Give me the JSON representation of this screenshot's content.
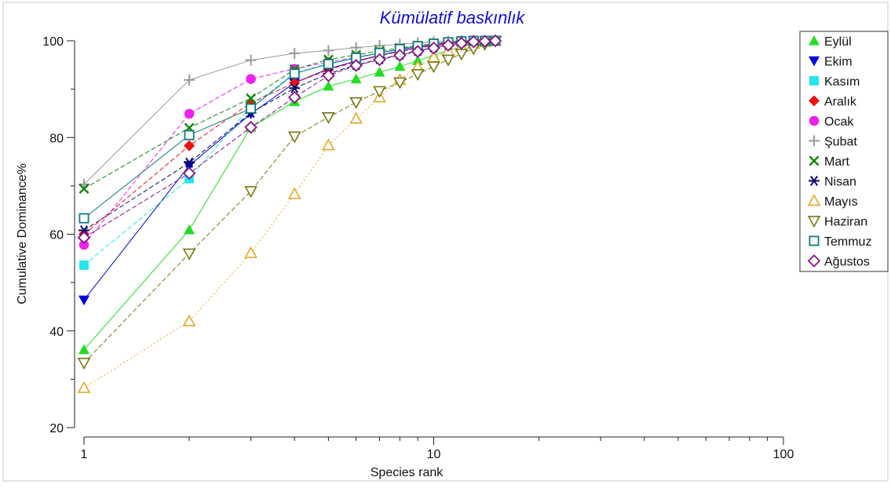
{
  "chart_data": {
    "type": "line",
    "title": "Kümülatif baskınlık",
    "xlabel": "Species rank",
    "ylabel": "Cumulative Dominance%",
    "xscale": "log",
    "xlim": [
      1,
      100
    ],
    "ylim": [
      20,
      100
    ],
    "xticks": [
      "1",
      "10",
      "100"
    ],
    "yticks": [
      "20",
      "40",
      "60",
      "80",
      "100"
    ],
    "grid": false,
    "legend_position": "right",
    "series": [
      {
        "name": "Eylül",
        "color": "#22dd22",
        "marker": "triangle-up-filled",
        "dash": "solid",
        "x": [
          1,
          2,
          3,
          4,
          5,
          6,
          7,
          8,
          9,
          10,
          11,
          12,
          13,
          14,
          15
        ],
        "y": [
          36.1,
          60.9,
          82.1,
          87.4,
          90.6,
          92.1,
          93.5,
          94.7,
          95.9,
          97.0,
          98.0,
          98.8,
          99.4,
          99.8,
          100
        ]
      },
      {
        "name": "Ekim",
        "color": "#0000dd",
        "marker": "triangle-down-filled",
        "dash": "solid",
        "x": [
          1,
          2,
          3,
          4,
          5,
          6,
          7,
          8,
          9,
          10,
          11,
          12,
          13,
          14,
          15
        ],
        "y": [
          46.4,
          74.2,
          84.9,
          91.3,
          94.2,
          95.8,
          97.0,
          97.9,
          98.6,
          99.1,
          99.5,
          99.7,
          99.9,
          100,
          100
        ]
      },
      {
        "name": "Kasım",
        "color": "#22e6f0",
        "marker": "square-filled",
        "dash": "dash",
        "x": [
          1,
          2,
          3,
          4,
          5,
          6,
          7,
          8,
          9,
          10,
          11,
          12,
          13,
          14,
          15
        ],
        "y": [
          53.6,
          71.5,
          86.4,
          93.3,
          95.3,
          96.5,
          97.4,
          98.2,
          98.8,
          99.3,
          99.6,
          99.8,
          99.9,
          100,
          100
        ]
      },
      {
        "name": "Aralık",
        "color": "#ee1111",
        "marker": "diamond-filled",
        "dash": "dash",
        "x": [
          1,
          2,
          3,
          4,
          5,
          6,
          7,
          8,
          9,
          10,
          11,
          12,
          13,
          14,
          15
        ],
        "y": [
          60.0,
          78.3,
          87.2,
          91.3,
          94.0,
          95.7,
          96.9,
          97.8,
          98.5,
          99.0,
          99.4,
          99.7,
          99.9,
          100,
          100
        ]
      },
      {
        "name": "Ocak",
        "color": "#ee22ee",
        "marker": "circle-filled",
        "dash": "dash",
        "x": [
          1,
          2,
          3,
          4,
          5,
          6,
          7,
          8,
          9,
          10,
          11,
          12,
          13,
          14,
          15
        ],
        "y": [
          57.8,
          84.9,
          92.1,
          94.2,
          95.6,
          96.6,
          97.5,
          98.2,
          98.8,
          99.3,
          99.6,
          99.8,
          99.9,
          100,
          100
        ]
      },
      {
        "name": "Şubat",
        "color": "#999999",
        "marker": "plus",
        "dash": "solid",
        "x": [
          1,
          2,
          3,
          4,
          5,
          6,
          7,
          8,
          9,
          10,
          11,
          12,
          13,
          14,
          15
        ],
        "y": [
          70.3,
          91.9,
          96.0,
          97.4,
          98.0,
          98.6,
          99.0,
          99.3,
          99.6,
          99.8,
          99.9,
          100,
          100,
          100,
          100
        ]
      },
      {
        "name": "Mart",
        "color": "#118811",
        "marker": "cross",
        "dash": "dash",
        "x": [
          1,
          2,
          3,
          4,
          5,
          6,
          7,
          8,
          9,
          10,
          11,
          12,
          13,
          14,
          15
        ],
        "y": [
          69.4,
          82.0,
          88.1,
          94.1,
          96.1,
          97.1,
          97.9,
          98.5,
          99.0,
          99.4,
          99.7,
          99.9,
          100,
          100,
          100
        ]
      },
      {
        "name": "Nisan",
        "color": "#0a0a6e",
        "marker": "asterisk",
        "dash": "dash",
        "x": [
          1,
          2,
          3,
          4,
          5,
          6,
          7,
          8,
          9,
          10,
          11,
          12,
          13,
          14,
          15
        ],
        "y": [
          60.8,
          74.8,
          85.1,
          90.2,
          93.2,
          95.0,
          96.2,
          97.1,
          97.9,
          98.6,
          99.1,
          99.5,
          99.8,
          99.9,
          100
        ]
      },
      {
        "name": "Mayıs",
        "color": "#e8a628",
        "marker": "triangle-up-open",
        "dash": "dot",
        "x": [
          1,
          2,
          3,
          4,
          5,
          6,
          7,
          8,
          9,
          10,
          11,
          12,
          13,
          14,
          15
        ],
        "y": [
          28.2,
          42.0,
          56.1,
          68.3,
          78.4,
          83.9,
          88.3,
          91.9,
          94.6,
          96.6,
          97.9,
          98.8,
          99.4,
          99.8,
          100
        ]
      },
      {
        "name": "Haziran",
        "color": "#777711",
        "marker": "triangle-down-open",
        "dash": "dash",
        "x": [
          1,
          2,
          3,
          4,
          5,
          6,
          7,
          8,
          9,
          10,
          11,
          12,
          13,
          14,
          15
        ],
        "y": [
          33.4,
          56.0,
          68.9,
          80.2,
          84.2,
          87.3,
          89.6,
          91.4,
          93.1,
          94.7,
          96.1,
          97.3,
          98.4,
          99.3,
          100
        ]
      },
      {
        "name": "Temmuz",
        "color": "#117a7a",
        "marker": "square-open",
        "dash": "solid",
        "x": [
          1,
          2,
          3,
          4,
          5,
          6,
          7,
          8,
          9,
          10,
          11,
          12,
          13,
          14,
          15
        ],
        "y": [
          63.3,
          80.5,
          86.0,
          93.2,
          95.2,
          96.5,
          97.5,
          98.3,
          98.9,
          99.4,
          99.7,
          99.9,
          100,
          100,
          100
        ]
      },
      {
        "name": "Ağustos",
        "color": "#881188",
        "marker": "diamond-open",
        "dash": "dash",
        "x": [
          1,
          2,
          3,
          4,
          5,
          6,
          7,
          8,
          9,
          10,
          11,
          12,
          13,
          14,
          15
        ],
        "y": [
          59.3,
          72.6,
          82.1,
          88.3,
          92.8,
          94.9,
          96.1,
          97.0,
          97.8,
          98.5,
          99.1,
          99.5,
          99.8,
          99.9,
          100
        ]
      }
    ]
  }
}
